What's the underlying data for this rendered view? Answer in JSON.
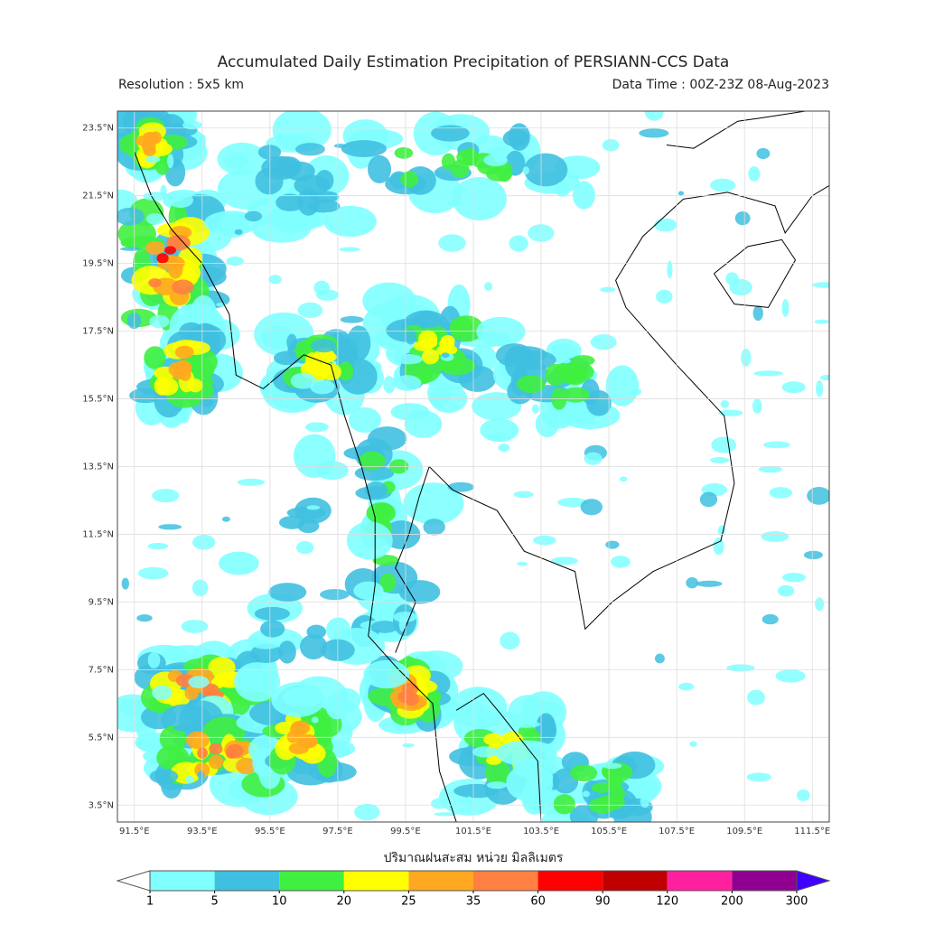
{
  "title": "Accumulated Daily Estimation Precipitation of PERSIANN-CCS Data",
  "subtitle_left": "Resolution : 5x5 km",
  "subtitle_right": "Data Time : 00Z-23Z 08-Aug-2023",
  "map": {
    "xlim": [
      91,
      112
    ],
    "ylim": [
      3,
      24
    ],
    "grid": true,
    "lon_ticks": [
      {
        "value": 91.5,
        "label": "91.5°E"
      },
      {
        "value": 93.5,
        "label": "93.5°E"
      },
      {
        "value": 95.5,
        "label": "95.5°E"
      },
      {
        "value": 97.5,
        "label": "97.5°E"
      },
      {
        "value": 99.5,
        "label": "99.5°E"
      },
      {
        "value": 101.5,
        "label": "101.5°E"
      },
      {
        "value": 103.5,
        "label": "103.5°E"
      },
      {
        "value": 105.5,
        "label": "105.5°E"
      },
      {
        "value": 107.5,
        "label": "107.5°E"
      },
      {
        "value": 109.5,
        "label": "109.5°E"
      },
      {
        "value": 111.5,
        "label": "111.5°E"
      }
    ],
    "lat_ticks": [
      {
        "value": 23.5,
        "label": "23.5°N"
      },
      {
        "value": 21.5,
        "label": "21.5°N"
      },
      {
        "value": 19.5,
        "label": "19.5°N"
      },
      {
        "value": 17.5,
        "label": "17.5°N"
      },
      {
        "value": 15.5,
        "label": "15.5°N"
      },
      {
        "value": 13.5,
        "label": "13.5°N"
      },
      {
        "value": 11.5,
        "label": "11.5°N"
      },
      {
        "value": 9.5,
        "label": "9.5°N"
      },
      {
        "value": 7.5,
        "label": "7.5°N"
      },
      {
        "value": 5.5,
        "label": "5.5°N"
      },
      {
        "value": 3.5,
        "label": "3.5°N"
      }
    ]
  },
  "colorbar": {
    "label": "ปริมาณฝนสะสม หน่วย มิลลิเมตร",
    "levels": [
      1,
      5,
      10,
      20,
      25,
      35,
      60,
      90,
      120,
      200,
      300
    ],
    "colors": [
      "#80ffff",
      "#40c0e0",
      "#40f040",
      "#ffff00",
      "#ffa820",
      "#ff8040",
      "#ff0000",
      "#c00000",
      "#ff20a0",
      "#900090"
    ],
    "under_color": "#ffffff",
    "over_color": "#4000ff"
  }
}
